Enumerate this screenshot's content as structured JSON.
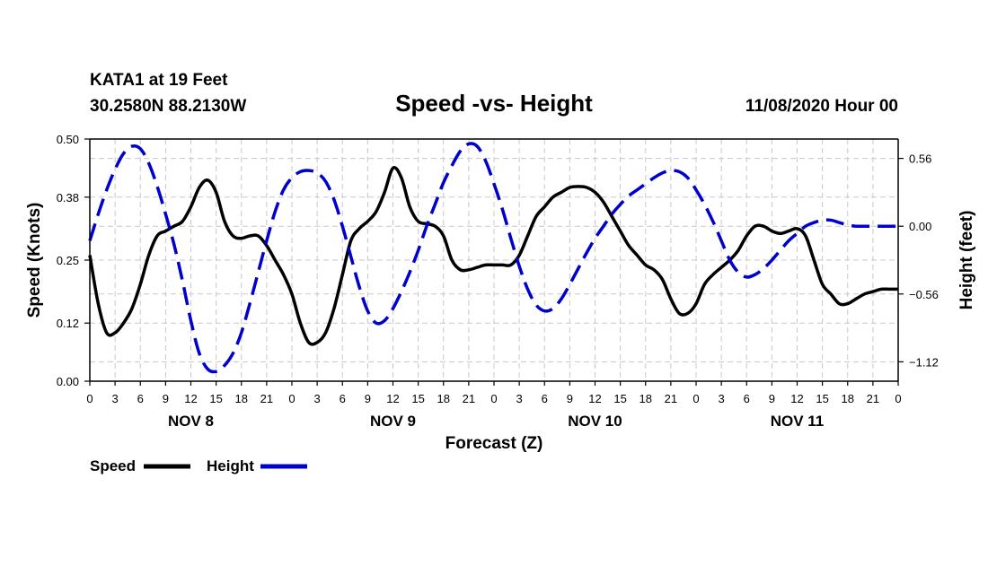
{
  "header": {
    "station": "KATA1 at 19 Feet",
    "coords": "30.2580N 88.2130W",
    "datetime": "11/08/2020 Hour 00"
  },
  "chart_data": {
    "type": "line",
    "title": "Speed -vs- Height",
    "xlabel": "Forecast (Z)",
    "ylabel": "Speed (Knots)",
    "y2label": "Height (feet)",
    "x_range_hours": [
      0,
      96
    ],
    "ylim": [
      0,
      0.5
    ],
    "y2lim": [
      -1.28,
      0.72
    ],
    "y_ticks": [
      0.0,
      0.12,
      0.25,
      0.38,
      0.5
    ],
    "y_tick_labels": [
      "0.00",
      "0.12",
      "0.25",
      "0.38",
      "0.50"
    ],
    "y2_ticks": [
      0.56,
      0.0,
      -0.56,
      -1.12
    ],
    "y2_tick_labels": [
      "0.56",
      "0.00",
      "−0.56",
      "−1.12"
    ],
    "x_ticks_hours": [
      0,
      3,
      6,
      9,
      12,
      15,
      18,
      21,
      24,
      27,
      30,
      33,
      36,
      39,
      42,
      45,
      48,
      51,
      54,
      57,
      60,
      63,
      66,
      69,
      72,
      75,
      78,
      81,
      84,
      87,
      90,
      93,
      96
    ],
    "x_tick_labels": [
      "0",
      "3",
      "6",
      "9",
      "12",
      "15",
      "18",
      "21",
      "0",
      "3",
      "6",
      "9",
      "12",
      "15",
      "18",
      "21",
      "0",
      "3",
      "6",
      "9",
      "12",
      "15",
      "18",
      "21",
      "0",
      "3",
      "6",
      "9",
      "12",
      "15",
      "18",
      "21",
      "0"
    ],
    "day_labels": [
      {
        "hour": 12,
        "label": "NOV 8"
      },
      {
        "hour": 36,
        "label": "NOV 9"
      },
      {
        "hour": 60,
        "label": "NOV 10"
      },
      {
        "hour": 84,
        "label": "NOV 11"
      }
    ],
    "series": [
      {
        "name": "Speed",
        "axis": "left",
        "color": "#000000",
        "style": "solid",
        "x": [
          0,
          1,
          2,
          3,
          4,
          5,
          6,
          7,
          8,
          9,
          10,
          11,
          12,
          13,
          14,
          15,
          16,
          17,
          18,
          19,
          20,
          21,
          22,
          23,
          24,
          25,
          26,
          27,
          28,
          29,
          30,
          31,
          32,
          33,
          34,
          35,
          36,
          37,
          38,
          39,
          40,
          41,
          42,
          43,
          44,
          45,
          46,
          47,
          48,
          49,
          50,
          51,
          52,
          53,
          54,
          55,
          56,
          57,
          58,
          59,
          60,
          61,
          62,
          63,
          64,
          65,
          66,
          67,
          68,
          69,
          70,
          71,
          72,
          73,
          74,
          75,
          76,
          77,
          78,
          79,
          80,
          81,
          82,
          83,
          84,
          85,
          86,
          87,
          88,
          89,
          90,
          91,
          92,
          93,
          94,
          95,
          96
        ],
        "values": [
          0.26,
          0.16,
          0.1,
          0.1,
          0.12,
          0.15,
          0.2,
          0.26,
          0.3,
          0.31,
          0.32,
          0.33,
          0.36,
          0.4,
          0.415,
          0.39,
          0.33,
          0.3,
          0.295,
          0.3,
          0.3,
          0.28,
          0.25,
          0.22,
          0.18,
          0.12,
          0.08,
          0.08,
          0.1,
          0.15,
          0.22,
          0.29,
          0.315,
          0.33,
          0.35,
          0.39,
          0.44,
          0.42,
          0.36,
          0.33,
          0.325,
          0.32,
          0.3,
          0.25,
          0.23,
          0.23,
          0.235,
          0.24,
          0.24,
          0.24,
          0.24,
          0.26,
          0.3,
          0.34,
          0.36,
          0.38,
          0.39,
          0.4,
          0.402,
          0.4,
          0.39,
          0.37,
          0.34,
          0.31,
          0.28,
          0.26,
          0.24,
          0.23,
          0.21,
          0.17,
          0.14,
          0.14,
          0.16,
          0.2,
          0.22,
          0.235,
          0.25,
          0.27,
          0.3,
          0.32,
          0.32,
          0.31,
          0.305,
          0.31,
          0.315,
          0.3,
          0.25,
          0.2,
          0.18,
          0.16,
          0.16,
          0.17,
          0.18,
          0.185,
          0.19,
          0.19,
          0.19
        ]
      },
      {
        "name": "Height",
        "axis": "right",
        "color": "#0000cc",
        "style": "dashed",
        "x": [
          0,
          1,
          2,
          3,
          4,
          5,
          6,
          7,
          8,
          9,
          10,
          11,
          12,
          13,
          14,
          15,
          16,
          17,
          18,
          19,
          20,
          21,
          22,
          23,
          24,
          25,
          26,
          27,
          28,
          29,
          30,
          31,
          32,
          33,
          34,
          35,
          36,
          37,
          38,
          39,
          40,
          41,
          42,
          43,
          44,
          45,
          46,
          47,
          48,
          49,
          50,
          51,
          52,
          53,
          54,
          55,
          56,
          57,
          58,
          59,
          60,
          61,
          62,
          63,
          64,
          65,
          66,
          67,
          68,
          69,
          70,
          71,
          72,
          73,
          74,
          75,
          76,
          77,
          78,
          79,
          80,
          81,
          82,
          83,
          84,
          85,
          86,
          87,
          88,
          89,
          90,
          91,
          92,
          93,
          94,
          95,
          96
        ],
        "values": [
          -0.12,
          0.1,
          0.3,
          0.47,
          0.6,
          0.66,
          0.64,
          0.52,
          0.33,
          0.1,
          -0.15,
          -0.45,
          -0.78,
          -1.05,
          -1.18,
          -1.2,
          -1.15,
          -1.05,
          -0.88,
          -0.64,
          -0.38,
          -0.12,
          0.12,
          0.3,
          0.4,
          0.45,
          0.46,
          0.44,
          0.37,
          0.22,
          0.0,
          -0.25,
          -0.5,
          -0.7,
          -0.8,
          -0.78,
          -0.68,
          -0.54,
          -0.38,
          -0.2,
          0.0,
          0.18,
          0.36,
          0.5,
          0.62,
          0.68,
          0.66,
          0.54,
          0.35,
          0.14,
          -0.1,
          -0.33,
          -0.52,
          -0.65,
          -0.7,
          -0.68,
          -0.6,
          -0.48,
          -0.35,
          -0.22,
          -0.1,
          0.0,
          0.1,
          0.18,
          0.25,
          0.3,
          0.35,
          0.4,
          0.44,
          0.46,
          0.45,
          0.4,
          0.3,
          0.18,
          0.04,
          -0.12,
          -0.28,
          -0.38,
          -0.42,
          -0.4,
          -0.35,
          -0.28,
          -0.2,
          -0.12,
          -0.06,
          0.0,
          0.03,
          0.05,
          0.05,
          0.03,
          0.01,
          0.0,
          0.0,
          0.0,
          0.0,
          0.0,
          0.0
        ]
      }
    ],
    "legend": {
      "position": "bottom-left",
      "items": [
        "Speed",
        "Height"
      ]
    }
  }
}
